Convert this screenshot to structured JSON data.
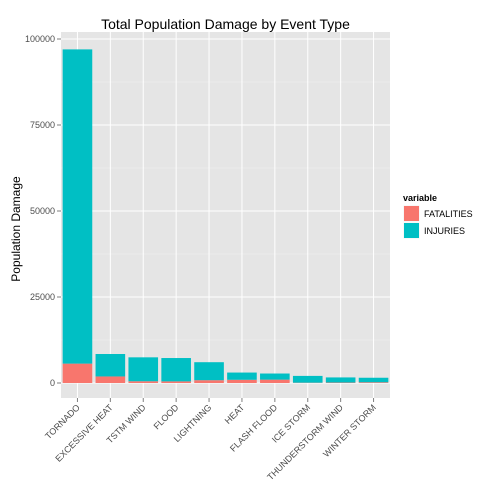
{
  "chart_data": {
    "type": "bar",
    "stacked": true,
    "title": "Total Population Damage by Event Type",
    "xlabel": "",
    "ylabel": "Population Damage",
    "ylim": [
      0,
      100000
    ],
    "yticks": [
      0,
      25000,
      50000,
      75000,
      100000
    ],
    "grid": true,
    "legend_title": "variable",
    "legend_position": "right",
    "categories": [
      "TORNADO",
      "EXCESSIVE HEAT",
      "TSTM WIND",
      "FLOOD",
      "LIGHTNING",
      "HEAT",
      "FLASH FLOOD",
      "ICE STORM",
      "THUNDERSTORM WIND",
      "WINTER STORM"
    ],
    "series": [
      {
        "name": "FATALITIES",
        "color": "#F8766D",
        "values": [
          5633,
          1903,
          504,
          470,
          816,
          937,
          978,
          89,
          133,
          206
        ]
      },
      {
        "name": "INJURIES",
        "color": "#00BFC4",
        "values": [
          91346,
          6525,
          6957,
          6789,
          5230,
          2100,
          1777,
          1975,
          1488,
          1321
        ]
      }
    ]
  }
}
